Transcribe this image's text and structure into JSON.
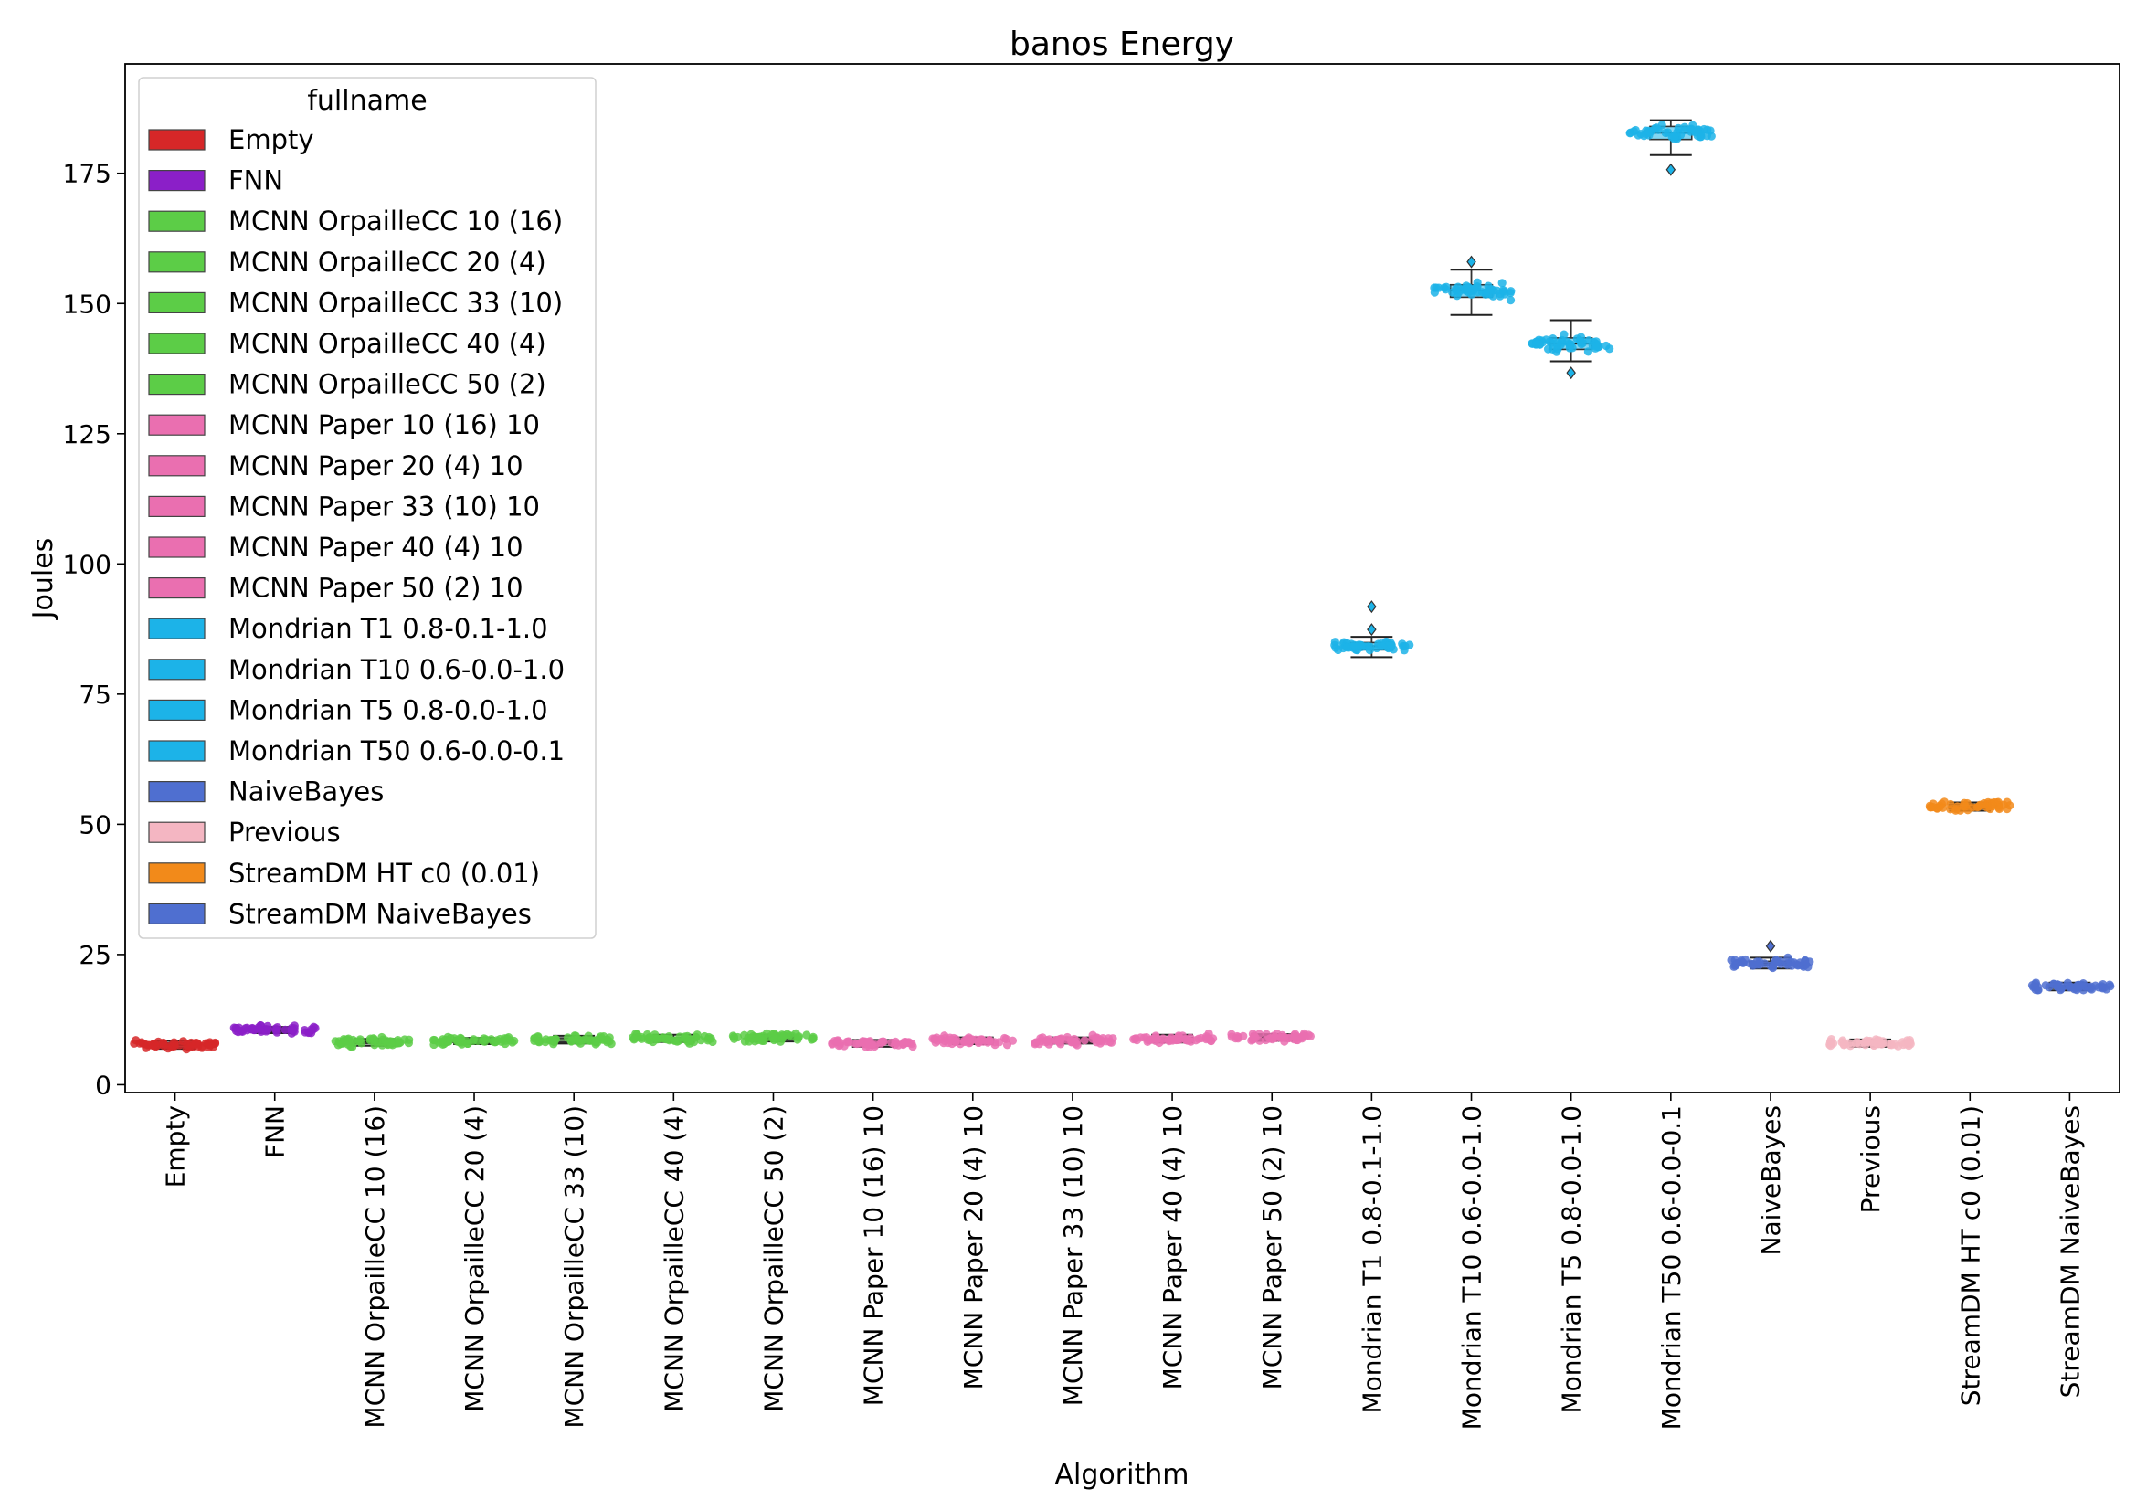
{
  "chart_data": {
    "type": "box+swarm",
    "title": "banos Energy",
    "xlabel": "Algorithm",
    "ylabel": "Joules",
    "ylim": [
      -1.5,
      196
    ],
    "yticks": [
      0,
      25,
      50,
      75,
      100,
      125,
      150,
      175
    ],
    "grid": false,
    "legend": {
      "title": "fullname",
      "placement": "top-left"
    },
    "categories": [
      "Empty",
      "FNN",
      "MCNN OrpailleCC 10 (16)",
      "MCNN OrpailleCC 20 (4)",
      "MCNN OrpailleCC 33 (10)",
      "MCNN OrpailleCC 40 (4)",
      "MCNN OrpailleCC 50 (2)",
      "MCNN Paper 10 (16) 10",
      "MCNN Paper 20 (4) 10",
      "MCNN Paper 33 (10) 10",
      "MCNN Paper 40 (4) 10",
      "MCNN Paper 50 (2) 10",
      "Mondrian T1 0.8-0.1-1.0",
      "Mondrian T10 0.6-0.0-1.0",
      "Mondrian T5 0.8-0.0-1.0",
      "Mondrian T50 0.6-0.0-0.1",
      "NaiveBayes",
      "Previous",
      "StreamDM HT c0 (0.01)",
      "StreamDM NaiveBayes"
    ],
    "series": [
      {
        "name": "Empty",
        "color": "#d62728",
        "median": 7.6,
        "q1": 7.2,
        "q3": 8.0,
        "whisker_low": 6.9,
        "whisker_high": 8.4,
        "outliers": []
      },
      {
        "name": "FNN",
        "color": "#8b1fc8",
        "median": 10.5,
        "q1": 10.2,
        "q3": 10.8,
        "whisker_low": 9.9,
        "whisker_high": 11.1,
        "outliers": []
      },
      {
        "name": "MCNN OrpailleCC 10 (16)",
        "color": "#5ccd47",
        "median": 8.2,
        "q1": 7.9,
        "q3": 8.5,
        "whisker_low": 7.5,
        "whisker_high": 8.8,
        "outliers": []
      },
      {
        "name": "MCNN OrpailleCC 20 (4)",
        "color": "#5ccd47",
        "median": 8.4,
        "q1": 8.1,
        "q3": 8.7,
        "whisker_low": 7.8,
        "whisker_high": 9.0,
        "outliers": []
      },
      {
        "name": "MCNN OrpailleCC 33 (10)",
        "color": "#5ccd47",
        "median": 8.6,
        "q1": 8.2,
        "q3": 9.0,
        "whisker_low": 7.9,
        "whisker_high": 9.4,
        "outliers": []
      },
      {
        "name": "MCNN OrpailleCC 40 (4)",
        "color": "#5ccd47",
        "median": 8.8,
        "q1": 8.5,
        "q3": 9.1,
        "whisker_low": 8.2,
        "whisker_high": 9.6,
        "outliers": []
      },
      {
        "name": "MCNN OrpailleCC 50 (2)",
        "color": "#5ccd47",
        "median": 9.0,
        "q1": 8.7,
        "q3": 9.3,
        "whisker_low": 8.3,
        "whisker_high": 9.6,
        "outliers": []
      },
      {
        "name": "MCNN Paper 10 (16) 10",
        "color": "#ea6fb0",
        "median": 8.0,
        "q1": 7.7,
        "q3": 8.3,
        "whisker_low": 7.3,
        "whisker_high": 8.6,
        "outliers": []
      },
      {
        "name": "MCNN Paper 20 (4) 10",
        "color": "#ea6fb0",
        "median": 8.4,
        "q1": 8.1,
        "q3": 8.7,
        "whisker_low": 7.8,
        "whisker_high": 9.1,
        "outliers": []
      },
      {
        "name": "MCNN Paper 33 (10) 10",
        "color": "#ea6fb0",
        "median": 8.5,
        "q1": 8.2,
        "q3": 8.8,
        "whisker_low": 7.9,
        "whisker_high": 9.1,
        "outliers": []
      },
      {
        "name": "MCNN Paper 40 (4) 10",
        "color": "#ea6fb0",
        "median": 8.8,
        "q1": 8.5,
        "q3": 9.1,
        "whisker_low": 8.1,
        "whisker_high": 9.6,
        "outliers": []
      },
      {
        "name": "MCNN Paper 50 (2) 10",
        "color": "#ea6fb0",
        "median": 9.1,
        "q1": 8.8,
        "q3": 9.4,
        "whisker_low": 8.4,
        "whisker_high": 9.7,
        "outliers": []
      },
      {
        "name": "Mondrian T1 0.8-0.1-1.0",
        "color": "#1cb3e8",
        "median": 84.2,
        "q1": 83.5,
        "q3": 84.9,
        "whisker_low": 82.1,
        "whisker_high": 86.0,
        "outliers": [
          87.4,
          91.8
        ]
      },
      {
        "name": "Mondrian T10 0.6-0.0-1.0",
        "color": "#1cb3e8",
        "median": 152.5,
        "q1": 151.2,
        "q3": 153.6,
        "whisker_low": 147.8,
        "whisker_high": 156.5,
        "outliers": [
          158.0
        ]
      },
      {
        "name": "Mondrian T5 0.8-0.0-1.0",
        "color": "#1cb3e8",
        "median": 142.3,
        "q1": 141.2,
        "q3": 143.4,
        "whisker_low": 138.9,
        "whisker_high": 146.8,
        "outliers": [
          136.7
        ]
      },
      {
        "name": "Mondrian T50 0.6-0.0-0.1",
        "color": "#1cb3e8",
        "median": 182.8,
        "q1": 181.5,
        "q3": 184.0,
        "whisker_low": 178.5,
        "whisker_high": 185.2,
        "outliers": [
          175.7
        ]
      },
      {
        "name": "NaiveBayes",
        "color": "#4f6fd0",
        "median": 23.3,
        "q1": 22.9,
        "q3": 23.7,
        "whisker_low": 22.3,
        "whisker_high": 24.4,
        "outliers": [
          26.6
        ]
      },
      {
        "name": "Previous",
        "color": "#f4b6c2",
        "median": 8.0,
        "q1": 7.7,
        "q3": 8.3,
        "whisker_low": 7.3,
        "whisker_high": 8.7,
        "outliers": []
      },
      {
        "name": "StreamDM HT c0 (0.01)",
        "color": "#f28a1a",
        "median": 53.4,
        "q1": 53.0,
        "q3": 53.8,
        "whisker_low": 52.6,
        "whisker_high": 54.2,
        "outliers": []
      },
      {
        "name": "StreamDM NaiveBayes",
        "color": "#4f6fd0",
        "median": 18.8,
        "q1": 18.5,
        "q3": 19.1,
        "whisker_low": 18.1,
        "whisker_high": 19.6,
        "outliers": []
      }
    ]
  }
}
